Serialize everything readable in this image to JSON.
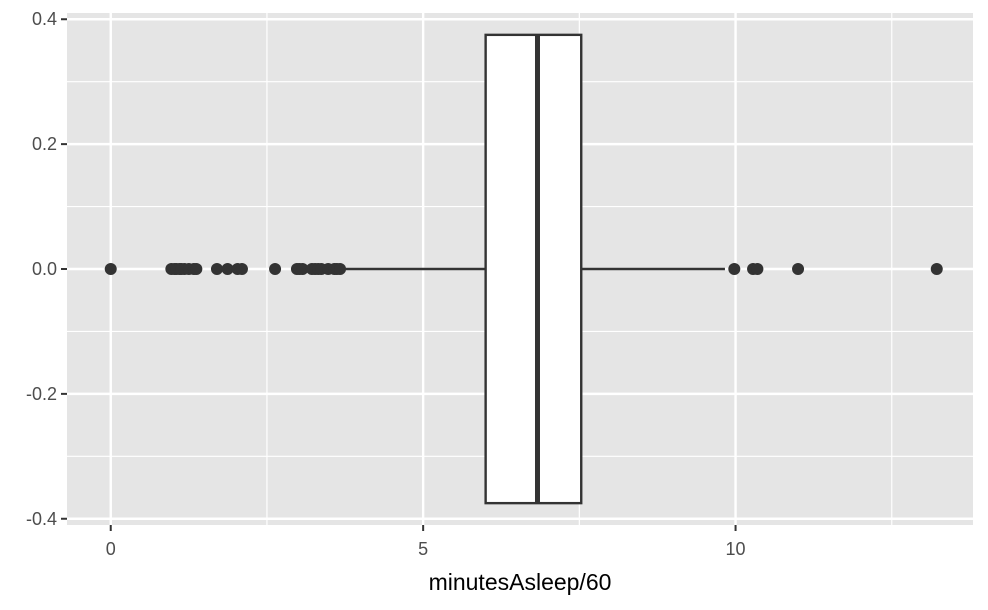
{
  "chart_data": {
    "type": "boxplot",
    "orientation": "horizontal",
    "title": "",
    "xlabel": "minutesAsleep/60",
    "ylabel": "",
    "xlim": [
      -0.7,
      13.8
    ],
    "ylim": [
      -0.41,
      0.41
    ],
    "x_ticks": [
      {
        "value": 0,
        "label": "0"
      },
      {
        "value": 5,
        "label": "5"
      },
      {
        "value": 10,
        "label": "10"
      }
    ],
    "y_ticks": [
      {
        "value": 0.4,
        "label": "0.4"
      },
      {
        "value": 0.2,
        "label": "0.2"
      },
      {
        "value": 0.0,
        "label": "0.0"
      },
      {
        "value": -0.2,
        "label": "-0.2"
      },
      {
        "value": -0.4,
        "label": "-0.4"
      }
    ],
    "x_minor_grid": [
      2.5,
      7.5,
      12.5
    ],
    "y_minor_grid": [
      0.3,
      0.1,
      -0.1,
      -0.3
    ],
    "box": {
      "y": 0,
      "half_width": 0.375,
      "whisker_low": 3.7,
      "q1": 6.0,
      "median": 6.83,
      "q3": 7.53,
      "whisker_high": 9.83
    },
    "outliers": [
      0,
      0.97,
      1.02,
      1.05,
      1.1,
      1.13,
      1.18,
      1.25,
      1.33,
      1.37,
      1.7,
      1.87,
      2.03,
      2.1,
      2.63,
      2.98,
      3.02,
      3.07,
      3.22,
      3.27,
      3.32,
      3.37,
      3.48,
      3.58,
      3.62,
      3.67,
      9.98,
      10.28,
      10.35,
      11.0,
      13.22
    ],
    "colors": {
      "panel": "#e5e5e5",
      "grid": "#ffffff",
      "box_fill": "#ffffff",
      "box_line": "#333333",
      "point": "#333333",
      "tick": "#333333"
    }
  }
}
